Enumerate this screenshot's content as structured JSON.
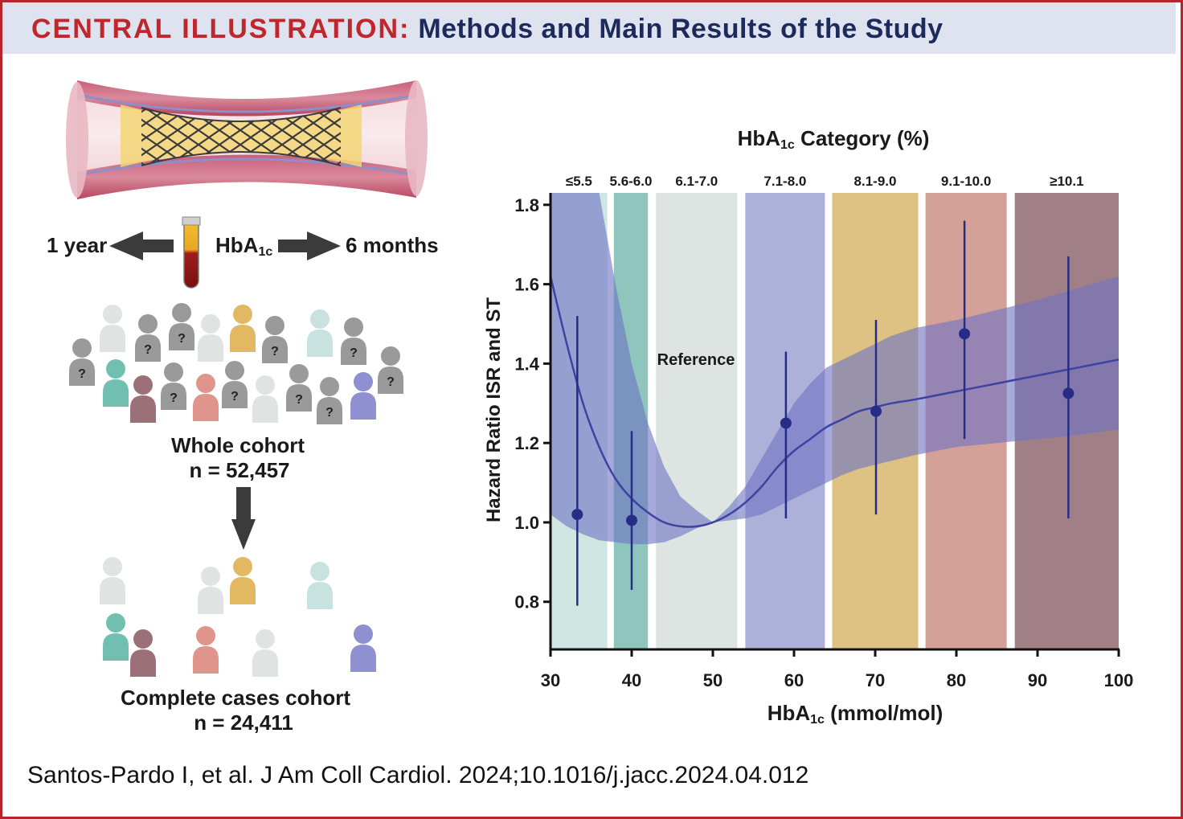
{
  "header": {
    "label": "CENTRAL ILLUSTRATION:",
    "title": "Methods and Main Results of the Study"
  },
  "citation": "Santos-Pardo I, et al. J Am Coll Cardiol. 2024;10.1016/j.jacc.2024.04.012",
  "methods": {
    "left_arrow_label": "1 year",
    "center_label": "HbA",
    "center_label_sub": "1c",
    "right_arrow_label": "6 months",
    "unknown_mark": "?",
    "whole_cohort": {
      "title": "Whole cohort",
      "n": "n = 52,457"
    },
    "complete_cohort": {
      "title": "Complete cases cohort",
      "n": "n = 24,411"
    }
  },
  "chart_data": {
    "type": "line",
    "title": "HbA",
    "title_sub": "1c",
    "title_suffix": " Category (%)",
    "xlabel": "HbA",
    "xlabel_sub": "1c",
    "xlabel_suffix": " (mmol/mol)",
    "ylabel": "Hazard Ratio ISR and ST",
    "xlim": [
      30,
      100
    ],
    "ylim": [
      0.68,
      1.83
    ],
    "x_ticks": [
      30,
      40,
      50,
      60,
      70,
      80,
      90,
      100
    ],
    "y_ticks": [
      0.8,
      1.0,
      1.2,
      1.4,
      1.6,
      1.8
    ],
    "y_tick_labels": [
      "0.8",
      "1.0",
      "1.2",
      "1.4",
      "1.6",
      "1.8"
    ],
    "categories": [
      {
        "label": "≤5.5",
        "x0": 30,
        "x1": 37,
        "color": "#cfe6e3"
      },
      {
        "label": "5.6-6.0",
        "x0": 37.8,
        "x1": 42,
        "color": "#8ec6bd"
      },
      {
        "label": "6.1-7.0",
        "x0": 43,
        "x1": 53,
        "color": "#dde4e2"
      },
      {
        "label": "7.1-8.0",
        "x0": 54,
        "x1": 63.8,
        "color": "#adb0d8"
      },
      {
        "label": "8.1-9.0",
        "x0": 64.7,
        "x1": 75.3,
        "color": "#dec283"
      },
      {
        "label": "9.1-10.0",
        "x0": 76.2,
        "x1": 86.2,
        "color": "#d4a199"
      },
      {
        "label": "≥10.1",
        "x0": 87.2,
        "x1": 100.7,
        "color": "#a07f86"
      }
    ],
    "reference_label": "Reference",
    "point_estimates": [
      {
        "x": 33.3,
        "y": 1.02,
        "lower": 0.79,
        "upper": 1.52
      },
      {
        "x": 40.0,
        "y": 1.005,
        "lower": 0.83,
        "upper": 1.23
      },
      {
        "x": 59.0,
        "y": 1.25,
        "lower": 1.01,
        "upper": 1.43
      },
      {
        "x": 70.1,
        "y": 1.28,
        "lower": 1.02,
        "upper": 1.51
      },
      {
        "x": 81.0,
        "y": 1.475,
        "lower": 1.21,
        "upper": 1.76
      },
      {
        "x": 93.8,
        "y": 1.325,
        "lower": 1.01,
        "upper": 1.67
      }
    ],
    "spline": {
      "x": [
        30,
        32,
        34,
        36,
        38,
        40,
        42,
        44,
        46,
        48,
        50,
        52,
        54,
        56,
        58,
        60,
        62,
        64,
        66,
        68,
        70,
        72,
        75,
        80,
        85,
        90,
        95,
        100
      ],
      "y": [
        1.62,
        1.45,
        1.3,
        1.19,
        1.11,
        1.06,
        1.025,
        1.0,
        0.99,
        0.99,
        1.0,
        1.02,
        1.05,
        1.09,
        1.14,
        1.18,
        1.21,
        1.24,
        1.26,
        1.28,
        1.29,
        1.3,
        1.31,
        1.33,
        1.35,
        1.37,
        1.39,
        1.41
      ],
      "lower": [
        1.02,
        0.99,
        0.97,
        0.955,
        0.95,
        0.945,
        0.945,
        0.95,
        0.965,
        0.985,
        1.0,
        1.005,
        1.01,
        1.02,
        1.04,
        1.06,
        1.08,
        1.1,
        1.12,
        1.135,
        1.145,
        1.155,
        1.17,
        1.19,
        1.2,
        1.21,
        1.22,
        1.235
      ],
      "upper": [
        2.6,
        2.35,
        2.1,
        1.84,
        1.6,
        1.4,
        1.25,
        1.14,
        1.065,
        1.03,
        1.0,
        1.04,
        1.09,
        1.16,
        1.23,
        1.3,
        1.35,
        1.39,
        1.41,
        1.43,
        1.45,
        1.47,
        1.49,
        1.51,
        1.535,
        1.56,
        1.59,
        1.62
      ]
    },
    "colors": {
      "curve": "#3d43a3",
      "band": "#6f74c4",
      "points": "#262d86",
      "axis": "#111111"
    }
  }
}
